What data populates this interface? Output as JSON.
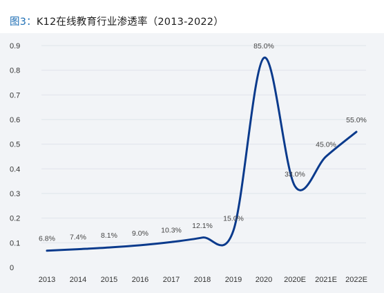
{
  "title": {
    "prefix": "图3：",
    "text": "K12在线教育行业渗透率（2013-2022）"
  },
  "chart_data": {
    "type": "line",
    "categories": [
      "2013",
      "2014",
      "2015",
      "2016",
      "2017",
      "2018",
      "2019",
      "2020",
      "2020E",
      "2021E",
      "2022E"
    ],
    "x_tick_labels": [
      "2013",
      "2014",
      "2015",
      "2016",
      "2017",
      "2018",
      "2019",
      "2020",
      "2020E",
      "2021E",
      "2022E"
    ],
    "values": [
      0.068,
      0.074,
      0.081,
      0.09,
      0.103,
      0.121,
      0.15,
      0.85,
      0.33,
      0.45,
      0.55
    ],
    "data_labels": [
      "6.8%",
      "7.4%",
      "8.1%",
      "9.0%",
      "10.3%",
      "12.1%",
      "15.0%",
      "85.0%",
      "33.0%",
      "45.0%",
      "55.0%"
    ],
    "ylim": [
      0,
      0.9
    ],
    "yticks": [
      "0",
      "0.1",
      "0.2",
      "0.3",
      "0.4",
      "0.5",
      "0.6",
      "0.7",
      "0.8",
      "0.9"
    ],
    "grid": true,
    "color": "#0a3a8c"
  }
}
